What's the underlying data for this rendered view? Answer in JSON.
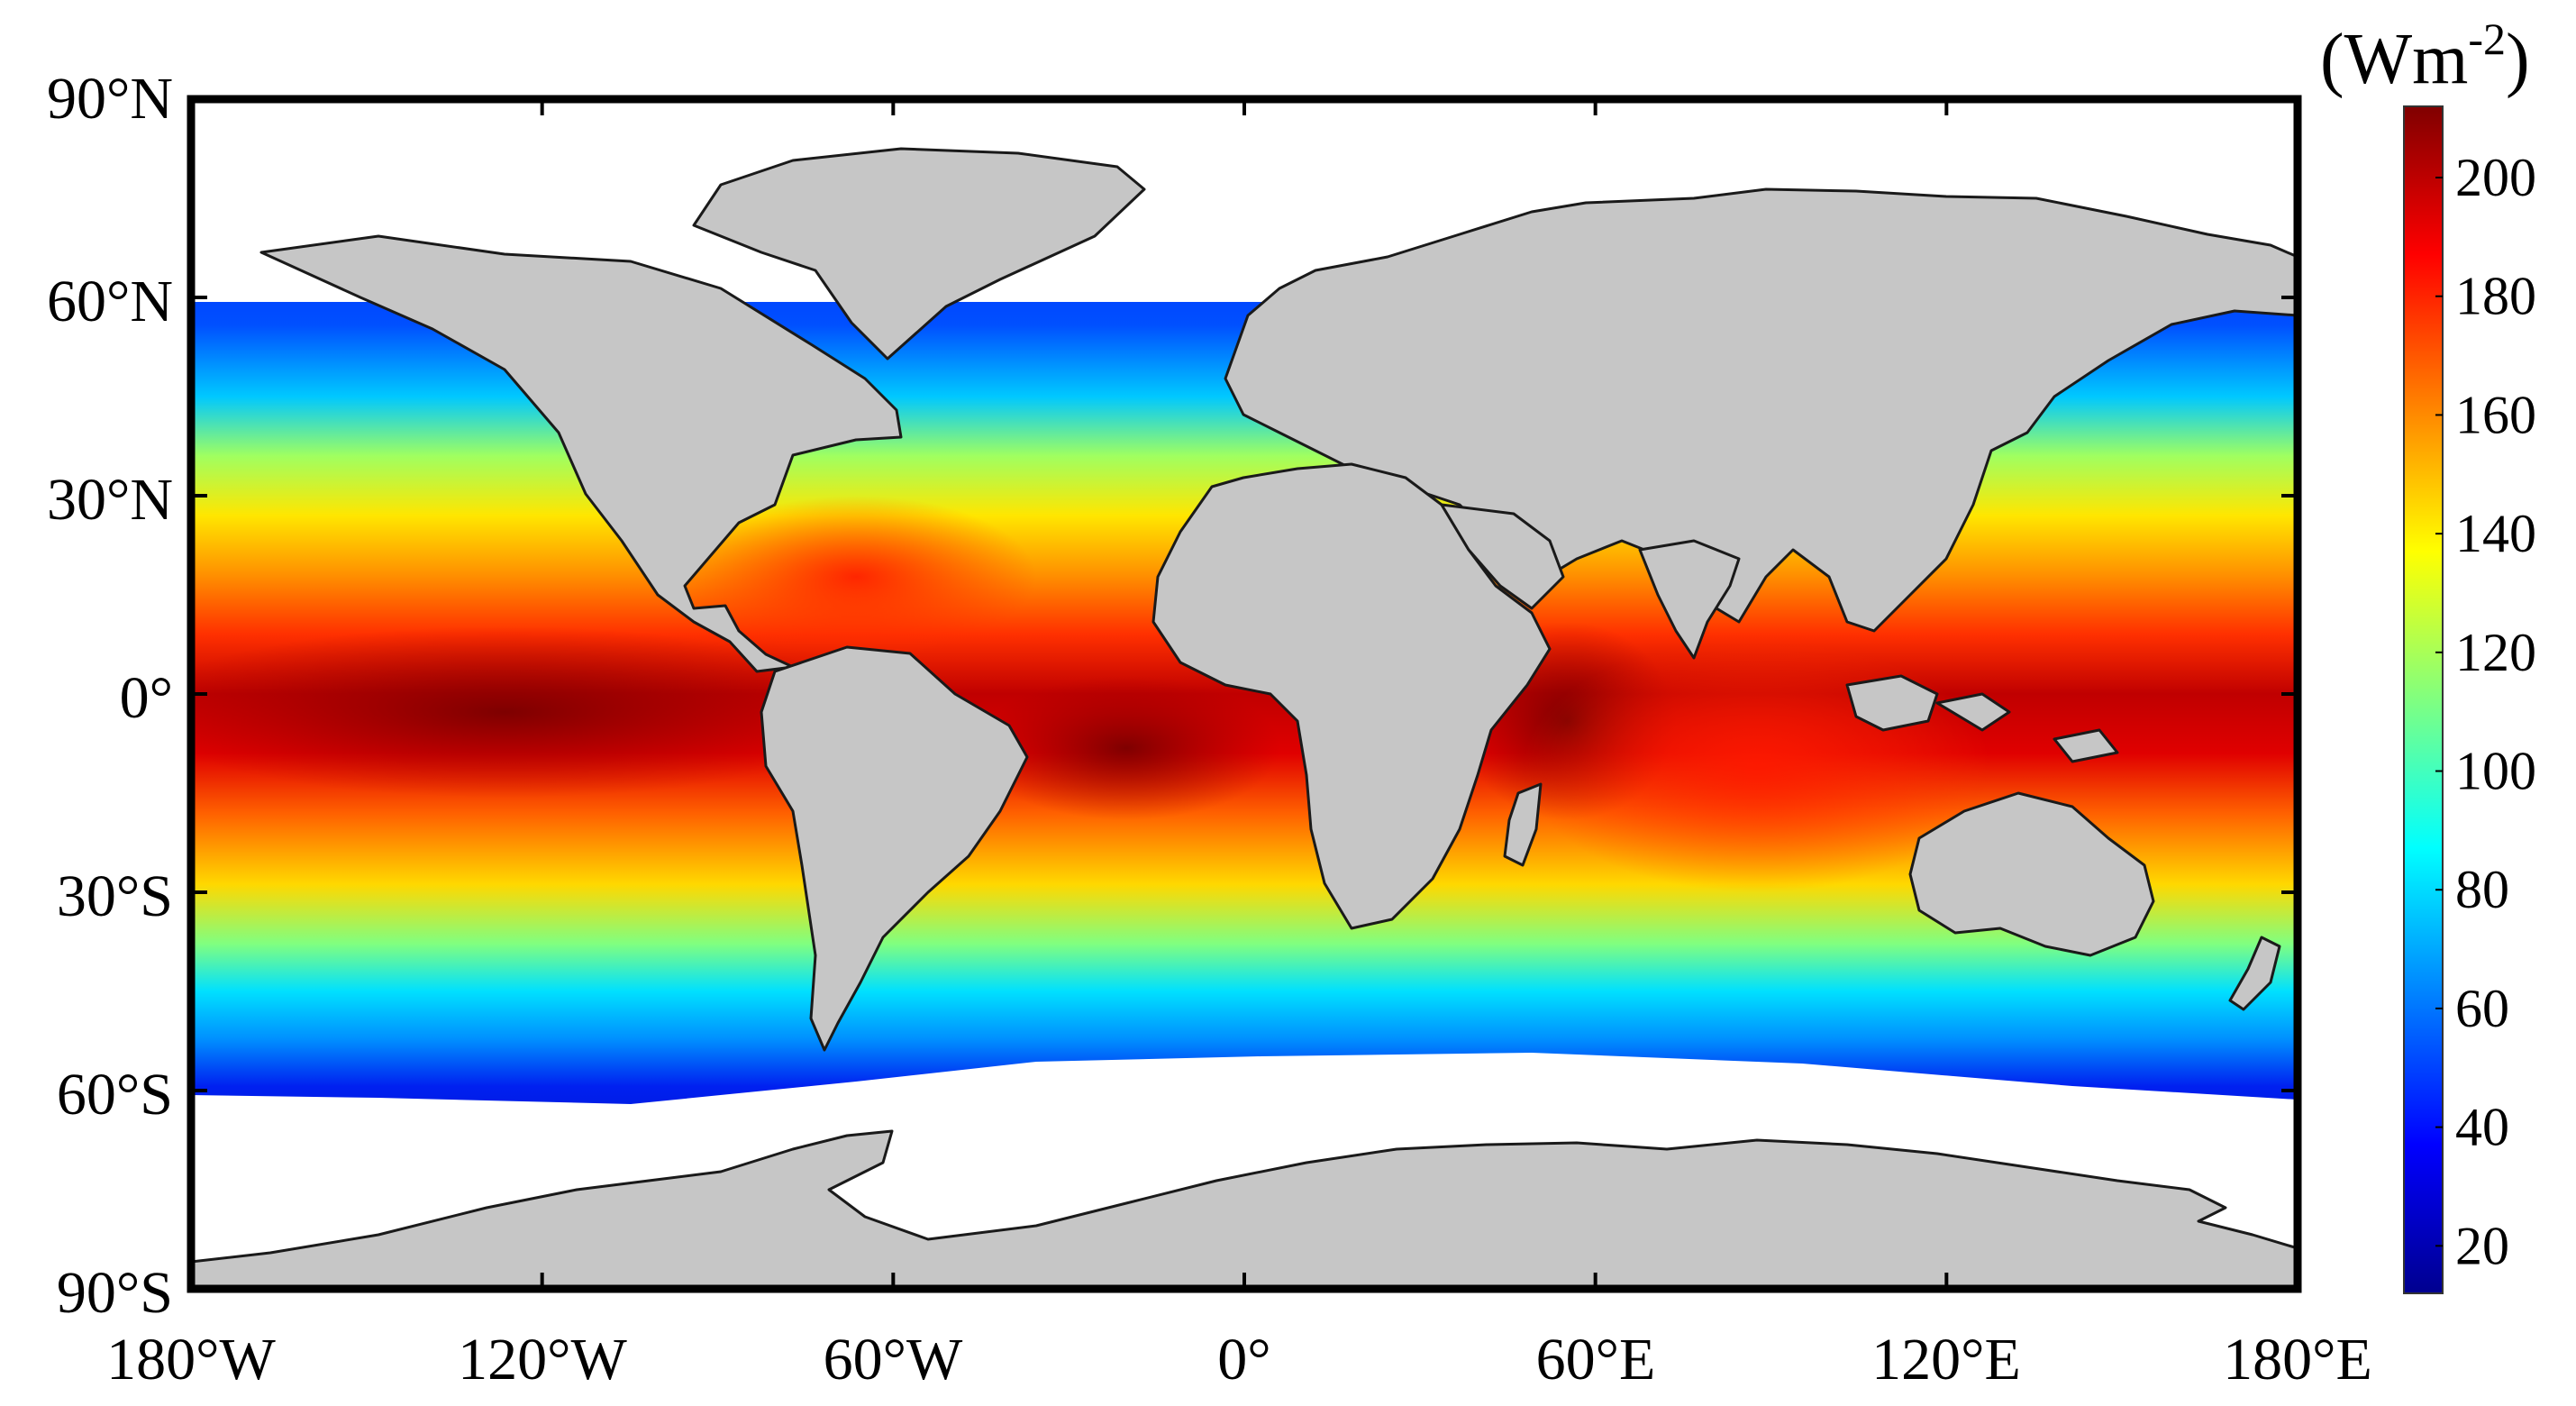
{
  "map": {
    "lat_labels": [
      "90°N",
      "60°N",
      "30°N",
      "0°",
      "30°S",
      "60°S",
      "90°S"
    ],
    "lon_labels": [
      "180°W",
      "120°W",
      "60°W",
      "0°",
      "60°E",
      "120°E",
      "180°E"
    ],
    "extent": {
      "lon": [
        -180,
        180
      ],
      "lat": [
        -90,
        90
      ]
    },
    "land_color": "#c6c6c6",
    "ice_color": "#ffffff",
    "ocean_field": "shaded flux field"
  },
  "colorbar": {
    "unit_base": "(Wm",
    "unit_exp": "-2",
    "unit_close": ")",
    "ticks": [
      "200",
      "180",
      "160",
      "140",
      "120",
      "100",
      "80",
      "60",
      "40",
      "20"
    ],
    "tick_values": [
      200,
      180,
      160,
      140,
      120,
      100,
      80,
      60,
      40,
      20
    ],
    "range": [
      12,
      212
    ],
    "colormap": [
      "#00008f",
      "#0000ff",
      "#0080ff",
      "#00ffff",
      "#80ff80",
      "#ffff00",
      "#ff8000",
      "#ff0000",
      "#800000"
    ]
  }
}
